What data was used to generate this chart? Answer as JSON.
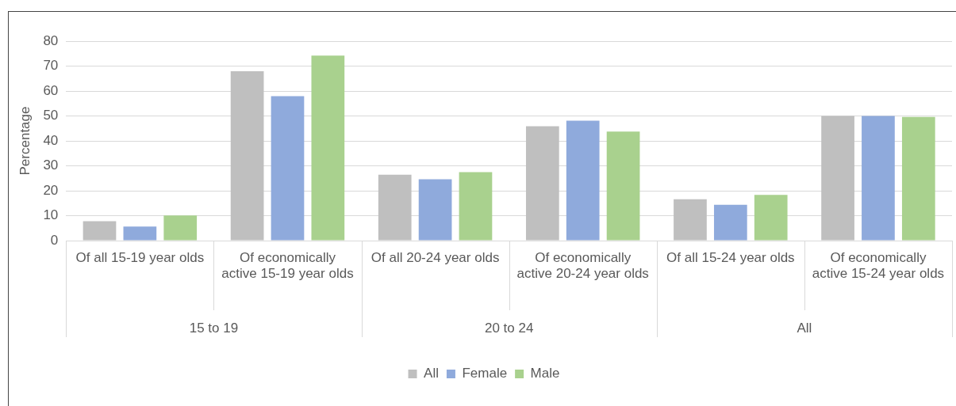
{
  "chart_data": {
    "type": "bar",
    "ylabel": "Percentage",
    "categories": [
      "Of all 15-19 year olds",
      "Of economically active 15-19 year olds",
      "Of all 20-24 year olds",
      "Of economically active 20-24 year olds",
      "Of all 15-24 year olds",
      "Of economically active 15-24 year olds"
    ],
    "series": [
      {
        "name": "All",
        "color": "#bfbfbf",
        "values": [
          7.8,
          67.9,
          26.4,
          45.9,
          16.6,
          50
        ]
      },
      {
        "name": "Female",
        "color": "#8faadc",
        "values": [
          5.6,
          57.9,
          24.6,
          48.1,
          14.4,
          50
        ]
      },
      {
        "name": "Male",
        "color": "#a9d18e",
        "values": [
          10.1,
          74.2,
          27.5,
          43.7,
          18.3,
          49.6
        ]
      }
    ],
    "ylim": [
      0,
      80
    ],
    "yticks": [
      0,
      10,
      20,
      30,
      40,
      50,
      60,
      70,
      80
    ],
    "grid": "y",
    "legend": "bottom",
    "annotations": [
      "15 to 19",
      "20 to 24",
      "All"
    ]
  }
}
